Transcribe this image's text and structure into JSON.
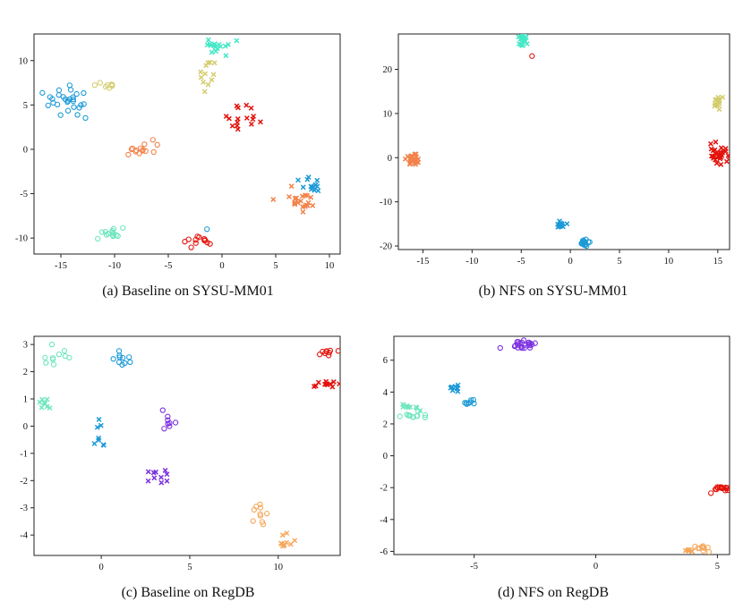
{
  "colors": {
    "blue": "#1c9ad6",
    "khaki": "#d4cd6f",
    "cyan": "#43e8c6",
    "red": "#e3120b",
    "orange": "#f2824a",
    "mint": "#6fe6be",
    "purple": "#7b2fe0",
    "amber": "#f5a85c"
  },
  "chart_data": [
    {
      "type": "scatter",
      "title": "(a)  Baseline on SYSU-MM01",
      "xlim": [
        -17.5,
        11
      ],
      "ylim": [
        -11.8,
        13
      ],
      "xticks": [
        -15,
        -10,
        -5,
        0,
        5,
        10
      ],
      "yticks": [
        -10,
        -5,
        0,
        5,
        10
      ],
      "clusters": [
        {
          "color": "blue",
          "marker": "o",
          "cx": -14.3,
          "cy": 5.5,
          "sx": 1.4,
          "sy": 1.1,
          "n": 28
        },
        {
          "color": "khaki",
          "marker": "o",
          "cx": -10.8,
          "cy": 7.1,
          "sx": 0.7,
          "sy": 0.4,
          "n": 8
        },
        {
          "color": "khaki",
          "marker": "x",
          "cx": -1.5,
          "cy": 8.3,
          "sx": 0.5,
          "sy": 1.2,
          "n": 12
        },
        {
          "color": "cyan",
          "marker": "x",
          "cx": -0.8,
          "cy": 11.5,
          "sx": 1.0,
          "sy": 0.6,
          "n": 16
        },
        {
          "color": "red",
          "marker": "x",
          "cx": 2.2,
          "cy": 3.4,
          "sx": 1.2,
          "sy": 1.1,
          "n": 16
        },
        {
          "color": "orange",
          "marker": "o",
          "cx": -7.5,
          "cy": -0.1,
          "sx": 0.9,
          "sy": 0.5,
          "n": 14
        },
        {
          "color": "blue",
          "marker": "x",
          "cx": 8.6,
          "cy": -4.2,
          "sx": 1.0,
          "sy": 0.9,
          "n": 14
        },
        {
          "color": "orange",
          "marker": "x",
          "cx": 7.2,
          "cy": -5.9,
          "sx": 1.0,
          "sy": 0.8,
          "n": 22
        },
        {
          "color": "mint",
          "marker": "o",
          "cx": -10.5,
          "cy": -9.6,
          "sx": 0.9,
          "sy": 0.5,
          "n": 14
        },
        {
          "color": "red",
          "marker": "o",
          "cx": -1.8,
          "cy": -10.2,
          "sx": 1.3,
          "sy": 0.4,
          "n": 12
        },
        {
          "color": "blue",
          "marker": "o",
          "cx": -1.4,
          "cy": -9.0,
          "sx": 0.05,
          "sy": 0.05,
          "n": 1
        }
      ]
    },
    {
      "type": "scatter",
      "title": "(b) NFS on SYSU-MM01",
      "xlim": [
        -17.5,
        16.2
      ],
      "ylim": [
        -20.8,
        28
      ],
      "xticks": [
        -15,
        -10,
        -5,
        0,
        5,
        10,
        15
      ],
      "yticks": [
        -20,
        -10,
        0,
        10,
        20
      ],
      "clusters": [
        {
          "color": "cyan",
          "marker": "x",
          "cx": -4.9,
          "cy": 26.4,
          "sx": 0.4,
          "sy": 1.1,
          "n": 18
        },
        {
          "color": "red",
          "marker": "o",
          "cx": -3.9,
          "cy": 23.0,
          "sx": 0.05,
          "sy": 0.05,
          "n": 1
        },
        {
          "color": "khaki",
          "marker": "x",
          "cx": 14.9,
          "cy": 12.6,
          "sx": 0.35,
          "sy": 0.9,
          "n": 16
        },
        {
          "color": "orange",
          "marker": "x",
          "cx": -16.0,
          "cy": -0.4,
          "sx": 0.45,
          "sy": 1.1,
          "n": 24
        },
        {
          "color": "red",
          "marker": "x",
          "cx": 15.1,
          "cy": 0.8,
          "sx": 0.6,
          "sy": 1.3,
          "n": 30
        },
        {
          "color": "blue",
          "marker": "x",
          "cx": -1.0,
          "cy": -15.3,
          "sx": 0.5,
          "sy": 0.5,
          "n": 12
        },
        {
          "color": "blue",
          "marker": "o",
          "cx": 1.3,
          "cy": -19.2,
          "sx": 0.45,
          "sy": 0.55,
          "n": 18
        }
      ]
    },
    {
      "type": "scatter",
      "title": "(c) Baseline on RegDB",
      "xlim": [
        -3.8,
        13.5
      ],
      "ylim": [
        -4.75,
        3.3
      ],
      "xticks": [
        0,
        5,
        10
      ],
      "yticks": [
        -4,
        -3,
        -2,
        -1,
        0,
        1,
        2,
        3
      ],
      "clusters": [
        {
          "color": "mint",
          "marker": "o",
          "cx": -2.8,
          "cy": 2.55,
          "sx": 0.5,
          "sy": 0.35,
          "n": 10
        },
        {
          "color": "mint",
          "marker": "x",
          "cx": -3.1,
          "cy": 0.85,
          "sx": 0.4,
          "sy": 0.25,
          "n": 8
        },
        {
          "color": "blue",
          "marker": "o",
          "cx": 1.4,
          "cy": 2.5,
          "sx": 0.45,
          "sy": 0.25,
          "n": 10
        },
        {
          "color": "blue",
          "marker": "x",
          "cx": -0.1,
          "cy": -0.15,
          "sx": 0.3,
          "sy": 0.4,
          "n": 8
        },
        {
          "color": "purple",
          "marker": "o",
          "cx": 3.6,
          "cy": 0.25,
          "sx": 0.45,
          "sy": 0.25,
          "n": 8
        },
        {
          "color": "purple",
          "marker": "x",
          "cx": 3.2,
          "cy": -1.8,
          "sx": 0.5,
          "sy": 0.2,
          "n": 10
        },
        {
          "color": "red",
          "marker": "o",
          "cx": 12.7,
          "cy": 2.65,
          "sx": 0.5,
          "sy": 0.15,
          "n": 10
        },
        {
          "color": "red",
          "marker": "x",
          "cx": 12.7,
          "cy": 1.55,
          "sx": 0.5,
          "sy": 0.1,
          "n": 12
        },
        {
          "color": "amber",
          "marker": "o",
          "cx": 9.0,
          "cy": -3.3,
          "sx": 0.25,
          "sy": 0.4,
          "n": 10
        },
        {
          "color": "amber",
          "marker": "x",
          "cx": 10.4,
          "cy": -4.25,
          "sx": 0.3,
          "sy": 0.25,
          "n": 10
        }
      ]
    },
    {
      "type": "scatter",
      "title": "(d) NFS on RegDB",
      "xlim": [
        -8.3,
        5.5
      ],
      "ylim": [
        -6.2,
        7.5
      ],
      "xticks": [
        -5,
        0,
        5
      ],
      "yticks": [
        -6,
        -4,
        -2,
        0,
        2,
        4,
        6
      ],
      "clusters": [
        {
          "color": "mint",
          "marker": "x",
          "cx": -7.6,
          "cy": 3.05,
          "sx": 0.35,
          "sy": 0.1,
          "n": 10
        },
        {
          "color": "mint",
          "marker": "o",
          "cx": -7.5,
          "cy": 2.5,
          "sx": 0.3,
          "sy": 0.2,
          "n": 12
        },
        {
          "color": "blue",
          "marker": "x",
          "cx": -5.8,
          "cy": 4.3,
          "sx": 0.25,
          "sy": 0.18,
          "n": 10
        },
        {
          "color": "blue",
          "marker": "o",
          "cx": -5.2,
          "cy": 3.35,
          "sx": 0.2,
          "sy": 0.1,
          "n": 8
        },
        {
          "color": "purple",
          "marker": "o",
          "cx": -3.1,
          "cy": 7.0,
          "sx": 0.5,
          "sy": 0.2,
          "n": 22
        },
        {
          "color": "red",
          "marker": "o",
          "cx": 5.2,
          "cy": -2.05,
          "sx": 0.25,
          "sy": 0.15,
          "n": 16
        },
        {
          "color": "amber",
          "marker": "x",
          "cx": 3.85,
          "cy": -5.95,
          "sx": 0.1,
          "sy": 0.15,
          "n": 8
        },
        {
          "color": "amber",
          "marker": "o",
          "cx": 4.4,
          "cy": -5.75,
          "sx": 0.15,
          "sy": 0.15,
          "n": 10
        }
      ]
    }
  ]
}
